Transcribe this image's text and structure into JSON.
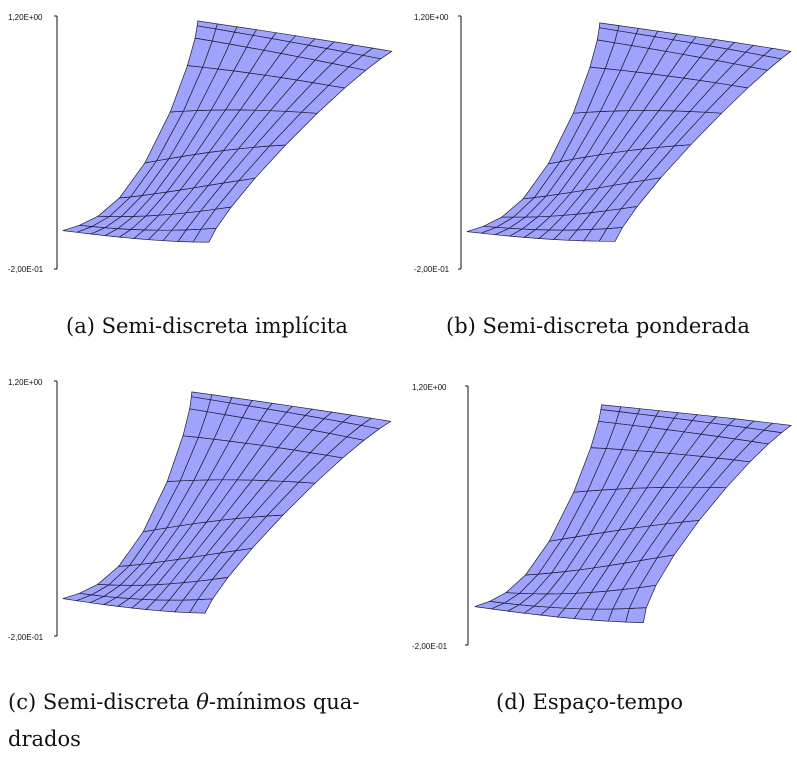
{
  "figure": {
    "panels": [
      {
        "id": "a",
        "axis_top_label": "1,20E+00",
        "axis_bottom_label": "-2,00E-01",
        "caption_prefix": "(a)",
        "caption_text": "Semi-discreta implícita"
      },
      {
        "id": "b",
        "axis_top_label": "1,20E+00",
        "axis_bottom_label": "-2,00E-01",
        "caption_prefix": "(b)",
        "caption_text": "Semi-discreta ponderada"
      },
      {
        "id": "c",
        "axis_top_label": "1,20E+00",
        "axis_bottom_label": "-2,00E-01",
        "caption_prefix": "(c)",
        "caption_text_before": "Semi-discreta",
        "caption_symbol": "θ",
        "caption_text_after": "-mínimos qua-",
        "caption_text_line2": "drados"
      },
      {
        "id": "d",
        "axis_top_label": "1,20E+00",
        "axis_bottom_label": "-2,00E-01",
        "caption_prefix": "(d)",
        "caption_text": "Espaço-tempo"
      }
    ],
    "colors": {
      "surface": "#a0a3fb",
      "mesh": "#1c1c3a",
      "axis": "#111111"
    }
  }
}
